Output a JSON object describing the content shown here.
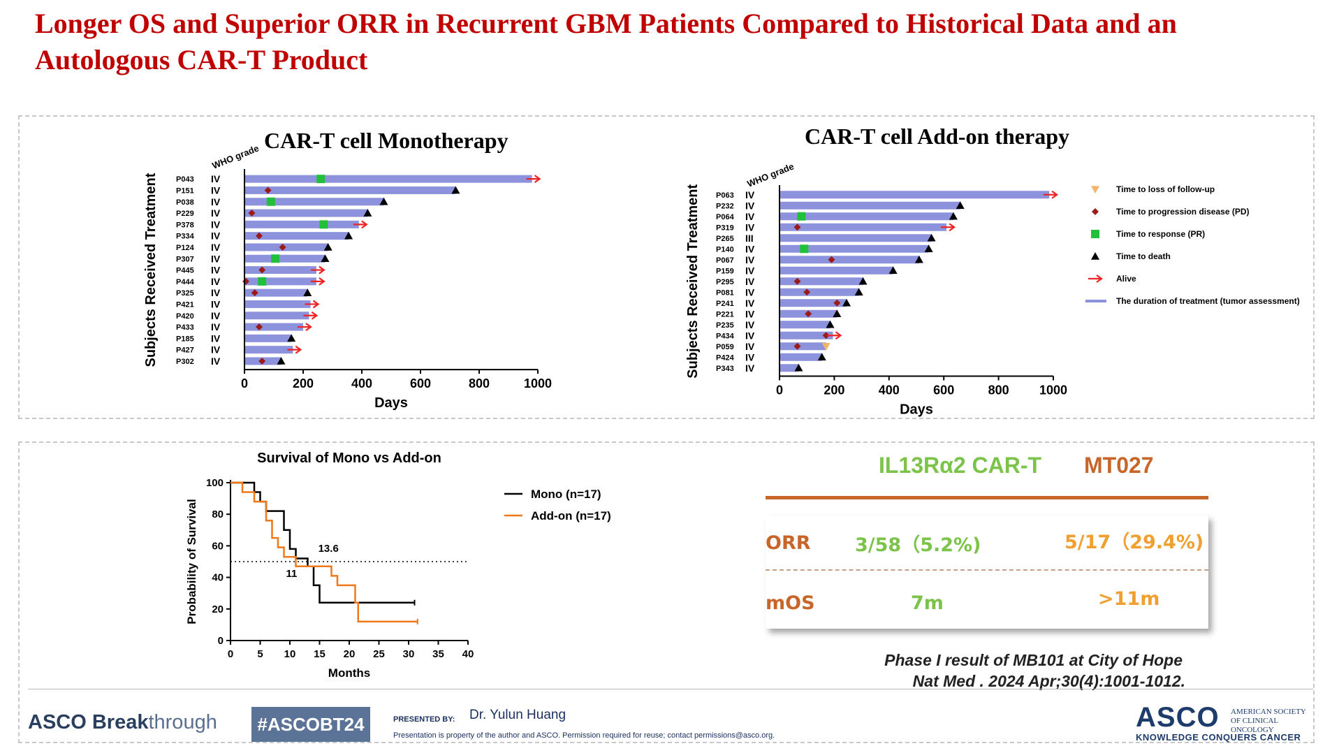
{
  "slide": {
    "title": "Longer OS and Superior ORR in Recurrent GBM Patients Compared to Historical Data and an Autologous CAR-T Product"
  },
  "colors": {
    "title_red": "#c00000",
    "bar_fill": "#8c93dc",
    "pd_marker": "#9b1b1b",
    "pr_marker": "#22c03a",
    "death_marker": "#000000",
    "alive_arrow": "#ee2222",
    "lost_followup": "#f2b56a",
    "mono_line": "#000000",
    "addon_line": "#f07818",
    "il13_green": "#7cc349",
    "mt027_orange": "#c8662a",
    "cmp_value_orange": "#f0a030"
  },
  "chart_data": [
    {
      "type": "bar",
      "title": "CAR-T cell Monotherapy",
      "xlabel": "Days",
      "ylabel": "Subjects Received Treatment",
      "grade_header": "WHO grade",
      "xlim": [
        0,
        1000
      ],
      "xticks": [
        "0",
        "200",
        "400",
        "600",
        "800",
        "1000"
      ],
      "patients": [
        {
          "id": "P043",
          "grade": "IV",
          "days": 980,
          "pr": 260,
          "alive": true
        },
        {
          "id": "P151",
          "grade": "IV",
          "days": 720,
          "pd": 80,
          "death": 720
        },
        {
          "id": "P038",
          "grade": "IV",
          "days": 475,
          "pr": 90,
          "death": 475
        },
        {
          "id": "P229",
          "grade": "IV",
          "days": 420,
          "pd": 25,
          "death": 420
        },
        {
          "id": "P378",
          "grade": "IV",
          "days": 390,
          "pr": 270,
          "alive": true
        },
        {
          "id": "P334",
          "grade": "IV",
          "days": 355,
          "pd": 50,
          "death": 355
        },
        {
          "id": "P124",
          "grade": "IV",
          "days": 285,
          "pd": 130,
          "death": 285
        },
        {
          "id": "P307",
          "grade": "IV",
          "days": 275,
          "pr": 105,
          "death": 275
        },
        {
          "id": "P445",
          "grade": "IV",
          "days": 245,
          "pd": 60,
          "alive": true
        },
        {
          "id": "P444",
          "grade": "IV",
          "days": 245,
          "pd": 5,
          "pr": 60,
          "alive": true
        },
        {
          "id": "P325",
          "grade": "IV",
          "days": 215,
          "pd": 35,
          "death": 215
        },
        {
          "id": "P421",
          "grade": "IV",
          "days": 225,
          "alive": true
        },
        {
          "id": "P420",
          "grade": "IV",
          "days": 220,
          "alive": true
        },
        {
          "id": "P433",
          "grade": "IV",
          "days": 200,
          "pd": 50,
          "alive": true
        },
        {
          "id": "P185",
          "grade": "IV",
          "days": 160,
          "death": 160
        },
        {
          "id": "P427",
          "grade": "IV",
          "days": 165,
          "alive": true
        },
        {
          "id": "P302",
          "grade": "IV",
          "days": 125,
          "pd": 60,
          "death": 125
        }
      ]
    },
    {
      "type": "bar",
      "title": "CAR-T cell Add-on therapy",
      "xlabel": "Days",
      "ylabel": "Subjects Received Treatment",
      "grade_header": "WHO grade",
      "xlim": [
        0,
        1000
      ],
      "xticks": [
        "0",
        "200",
        "400",
        "600",
        "800",
        "1000"
      ],
      "patients": [
        {
          "id": "P063",
          "grade": "IV",
          "days": 985,
          "alive": true
        },
        {
          "id": "P232",
          "grade": "IV",
          "days": 660,
          "death": 660
        },
        {
          "id": "P064",
          "grade": "IV",
          "days": 635,
          "pr": 80,
          "death": 635
        },
        {
          "id": "P319",
          "grade": "IV",
          "days": 610,
          "pd": 65,
          "alive": true
        },
        {
          "id": "P265",
          "grade": "III",
          "days": 555,
          "death": 555
        },
        {
          "id": "P140",
          "grade": "IV",
          "days": 545,
          "pr": 90,
          "death": 545
        },
        {
          "id": "P067",
          "grade": "IV",
          "days": 510,
          "pd": 190,
          "death": 510
        },
        {
          "id": "P159",
          "grade": "IV",
          "days": 415,
          "death": 415
        },
        {
          "id": "P295",
          "grade": "IV",
          "days": 305,
          "pd": 65,
          "death": 305
        },
        {
          "id": "P081",
          "grade": "IV",
          "days": 290,
          "pd": 100,
          "death": 290
        },
        {
          "id": "P241",
          "grade": "IV",
          "days": 245,
          "pd": 210,
          "death": 245
        },
        {
          "id": "P221",
          "grade": "IV",
          "days": 210,
          "pd": 105,
          "death": 210
        },
        {
          "id": "P235",
          "grade": "IV",
          "days": 185,
          "death": 185
        },
        {
          "id": "P434",
          "grade": "IV",
          "days": 195,
          "pd": 170,
          "alive": true
        },
        {
          "id": "P059",
          "grade": "IV",
          "days": 170,
          "pd": 65,
          "lost": 170
        },
        {
          "id": "P424",
          "grade": "IV",
          "days": 155,
          "death": 155
        },
        {
          "id": "P343",
          "grade": "IV",
          "days": 70,
          "death": 70
        }
      ]
    },
    {
      "type": "line",
      "title": "Survival of Mono vs Add-on",
      "xlabel": "Months",
      "ylabel": "Probability of Survival",
      "xlim": [
        0,
        40
      ],
      "ylim": [
        0,
        100
      ],
      "xticks": [
        "0",
        "5",
        "10",
        "15",
        "20",
        "25",
        "30",
        "35",
        "40"
      ],
      "yticks": [
        "0",
        "20",
        "40",
        "60",
        "80",
        "100"
      ],
      "median_reference": 50,
      "annotations": {
        "mono_median": "11",
        "addon_median": "13.6"
      },
      "series": [
        {
          "name": "Mono (n=17)",
          "color": "#000000",
          "x": [
            0,
            4,
            5,
            6,
            8,
            9,
            10,
            11,
            13,
            14,
            15,
            20,
            31
          ],
          "y": [
            100,
            94,
            88,
            82,
            82,
            70,
            58,
            52,
            47,
            35,
            24,
            24,
            24
          ]
        },
        {
          "name": "Add-on (n=17)",
          "color": "#f07818",
          "x": [
            0,
            2,
            4,
            6,
            7,
            8,
            9,
            10,
            11,
            13,
            17,
            18,
            19,
            21,
            21.5,
            31.5
          ],
          "y": [
            100,
            94,
            88,
            76,
            65,
            59,
            53,
            53,
            47,
            47,
            41,
            35,
            35,
            24,
            12,
            12
          ]
        }
      ]
    }
  ],
  "legend": {
    "items": [
      {
        "marker": "lost",
        "label": "Time to loss of follow-up"
      },
      {
        "marker": "pd",
        "label": "Time to progression disease (PD)"
      },
      {
        "marker": "pr",
        "label": "Time to response (PR)"
      },
      {
        "marker": "death",
        "label": "Time to death"
      },
      {
        "marker": "alive",
        "label": "Alive"
      },
      {
        "marker": "bar",
        "label": "The duration of treatment (tumor assessment)"
      }
    ]
  },
  "comparison": {
    "col1": "IL13Rα2 CAR-T",
    "col2": "MT027",
    "rows": [
      {
        "label": "ORR",
        "v1": "3/58（5.2%)",
        "v2": "5/17（29.4%)"
      },
      {
        "label": "mOS",
        "v1": "7m",
        "v2": ">11m"
      }
    ]
  },
  "reference": {
    "line1": "Phase I result of MB101 at City of Hope",
    "line2": "Nat Med . 2024 Apr;30(4):1001-1012."
  },
  "footer": {
    "brand_bold": "ASCO",
    "brand_mid": " Break",
    "brand_light": "through",
    "hashtag": "#ASCOBT24",
    "presented_by": "PRESENTED BY:",
    "presenter": "Dr. Yulun  Huang",
    "disclaimer": "Presentation is property of the author and ASCO. Permission required for reuse; contact permissions@asco.org.",
    "asco_logo": "ASCO",
    "asco_full": "AMERICAN SOCIETY OF CLINICAL ONCOLOGY",
    "asco_tagline": "KNOWLEDGE CONQUERS CANCER"
  }
}
